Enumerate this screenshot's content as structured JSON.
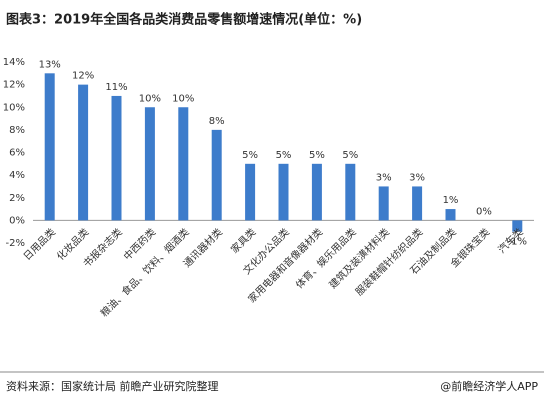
{
  "chart_data": {
    "type": "bar",
    "title": "图表3：2019年全国各品类消费品零售额增速情况(单位：%)",
    "source": "资料来源：国家统计局 前瞻产业研究院整理",
    "credit": "@前瞻经济学人APP",
    "categories": [
      "日用品类",
      "化妆品类",
      "书报杂志类",
      "中西药类",
      "粮油、食品、饮料、烟酒类",
      "通讯器材类",
      "家具类",
      "文化办公品类",
      "家用电器和音像器材类",
      "体育、娱乐用品类",
      "建筑及装潢材料类",
      "服装鞋帽针纺织品类",
      "石油及制品类",
      "金银珠宝类",
      "汽车类"
    ],
    "values": [
      13,
      12,
      11,
      10,
      10,
      8,
      5,
      5,
      5,
      5,
      3,
      3,
      1,
      0,
      -1
    ],
    "value_labels": [
      "13%",
      "12%",
      "11%",
      "10%",
      "10%",
      "8%",
      "5%",
      "5%",
      "5%",
      "5%",
      "3%",
      "3%",
      "1%",
      "0%",
      "-1%"
    ],
    "color": "#3d7ccb",
    "ylim": [
      -2,
      14
    ],
    "yticks": [
      {
        "value": -2,
        "label": "-2%"
      },
      {
        "value": 0,
        "label": "0%"
      },
      {
        "value": 2,
        "label": "2%"
      },
      {
        "value": 4,
        "label": "4%"
      },
      {
        "value": 6,
        "label": "6%"
      },
      {
        "value": 8,
        "label": "8%"
      },
      {
        "value": 10,
        "label": "10%"
      },
      {
        "value": 12,
        "label": "12%"
      },
      {
        "value": 14,
        "label": "14%"
      }
    ],
    "grid": false
  }
}
